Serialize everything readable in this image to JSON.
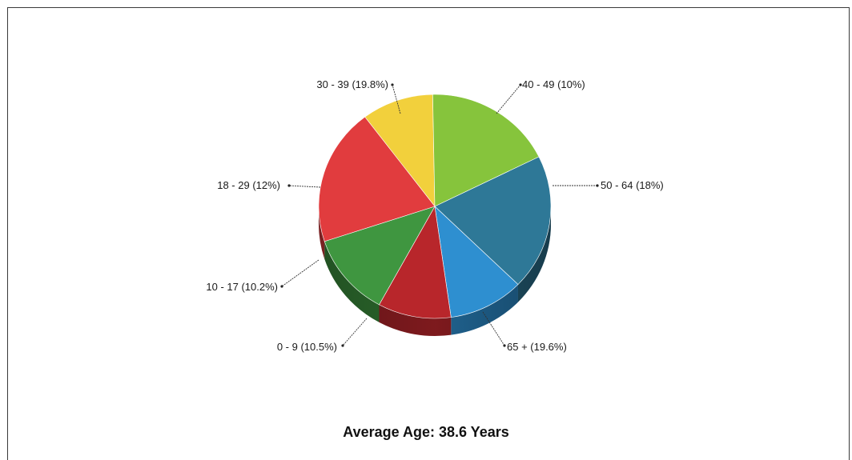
{
  "chart_data": {
    "type": "pie",
    "title": "",
    "footer": "Average Age: 38.6 Years",
    "slices": [
      {
        "label": "40 - 49 (10%)",
        "category": "40 - 49",
        "value": 10.0,
        "color": "#f2d03c"
      },
      {
        "label": "50 - 64 (18%)",
        "category": "50 - 64",
        "value": 18.0,
        "color": "#86c43c"
      },
      {
        "label": "65 + (19.6%)",
        "category": "65 +",
        "value": 19.6,
        "color": "#2e7897"
      },
      {
        "label": "0 - 9 (10.5%)",
        "category": "0 - 9",
        "value": 10.5,
        "color": "#2e8fd0"
      },
      {
        "label": "10 - 17 (10.2%)",
        "category": "10 - 17",
        "value": 10.2,
        "color": "#b8262b"
      },
      {
        "label": "18 - 29 (12%)",
        "category": "18 - 29",
        "value": 12.0,
        "color": "#3f9640"
      },
      {
        "label": "30 - 39 (19.8%)",
        "category": "30 - 39",
        "value": 19.8,
        "color": "#e13c3e"
      }
    ],
    "style": "3d-pie"
  }
}
